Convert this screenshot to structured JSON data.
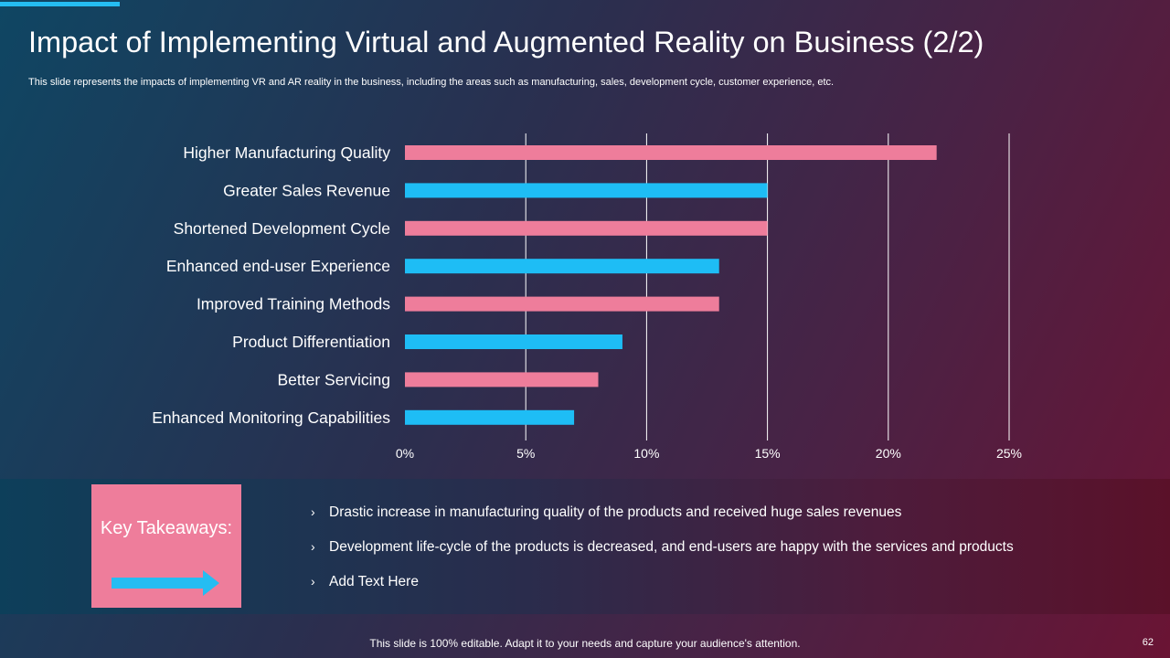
{
  "slide": {
    "title": "Impact of Implementing Virtual and Augmented Reality on Business (2/2)",
    "subtitle": "This slide represents the impacts of implementing VR and AR reality in the business, including the areas such as manufacturing, sales, development cycle, customer experience, etc.",
    "footer": "This slide is 100% editable. Adapt it to your needs and capture your audience's attention.",
    "page_number": "62"
  },
  "colors": {
    "pink": "#ee7d9b",
    "blue": "#1ebdf5",
    "accent": "#25bdf2"
  },
  "chart_data": {
    "type": "bar",
    "orientation": "horizontal",
    "categories": [
      "Higher Manufacturing Quality",
      "Greater Sales Revenue",
      "Shortened Development Cycle",
      "Enhanced end-user Experience",
      "Improved Training Methods",
      "Product Differentiation",
      "Better Servicing",
      "Enhanced Monitoring Capabilities"
    ],
    "values": [
      22,
      15,
      15,
      13,
      13,
      9,
      8,
      7
    ],
    "bar_colors": [
      "pink",
      "blue",
      "pink",
      "blue",
      "pink",
      "blue",
      "pink",
      "blue"
    ],
    "xlim": [
      0,
      25
    ],
    "xticks": [
      0,
      5,
      10,
      15,
      20,
      25
    ],
    "xtick_labels": [
      "0%",
      "5%",
      "10%",
      "15%",
      "20%",
      "25%"
    ],
    "grid": true,
    "title": "",
    "xlabel": "",
    "ylabel": ""
  },
  "takeaways": {
    "label": "Key Takeaways:",
    "bullet_glyph": "›",
    "items": [
      "Drastic increase in manufacturing quality of the products and received huge sales revenues",
      "Development life-cycle of the products is decreased, and end-users are happy with the services and products",
      "Add Text Here"
    ]
  }
}
